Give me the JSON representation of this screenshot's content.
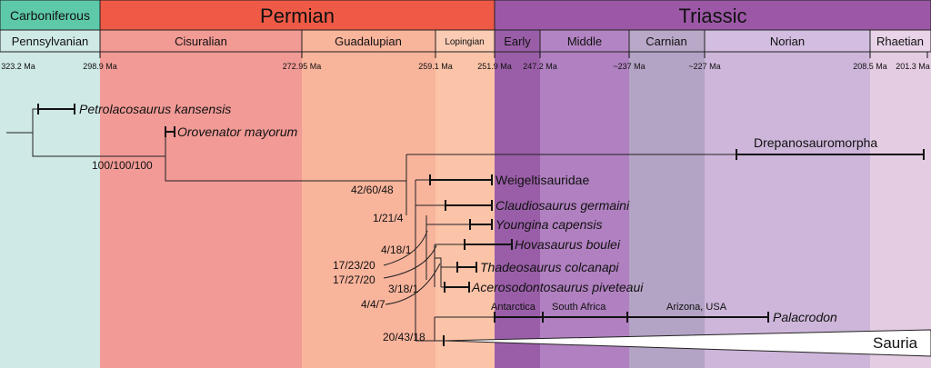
{
  "periods": [
    {
      "key": "carboniferous",
      "label": "Carboniferous",
      "color": "#5ec9a9"
    },
    {
      "key": "permian",
      "label": "Permian",
      "color": "#ef5a46"
    },
    {
      "key": "triassic",
      "label": "Triassic",
      "color": "#9c58a6"
    }
  ],
  "epochs": [
    {
      "key": "pennsylvanian",
      "label": "Pennsylvanian",
      "band": "#cfe9e6",
      "header": "#cfe9e6"
    },
    {
      "key": "cisuralian",
      "label": "Cisuralian",
      "band": "#f19a96",
      "header": "#f29a94"
    },
    {
      "key": "guadalupian",
      "label": "Guadalupian",
      "band": "#f9b49c",
      "header": "#f9b49c"
    },
    {
      "key": "lopingian",
      "label": "Lopingian",
      "band": "#fbc3a8",
      "header": "#fbcbb4"
    },
    {
      "key": "early",
      "label": "Early",
      "band": "#9a5ea8",
      "header": "#9a5ea8"
    },
    {
      "key": "middle",
      "label": "Middle",
      "band": "#b080c0",
      "header": "#b384c3"
    },
    {
      "key": "carnian",
      "label": "Carnian",
      "band": "#b3a3c5",
      "header": "#b9a8c8"
    },
    {
      "key": "norian",
      "label": "Norian",
      "band": "#cdb6da",
      "header": "#d3bde0"
    },
    {
      "key": "rhaetian",
      "label": "Rhaetian",
      "band": "#e4cce2",
      "header": "#e9d3e8"
    }
  ],
  "ages": [
    "323.2 Ma",
    "298.9 Ma",
    "272.95 Ma",
    "259.1 Ma",
    "251.9 Ma",
    "247.2 Ma",
    "~237 Ma",
    "~227 Ma",
    "208.5 Ma",
    "201.3 Ma"
  ],
  "taxa": [
    {
      "key": "petrolacosaurus",
      "label": "Petrolacosaurus kansensis",
      "italic": true
    },
    {
      "key": "orovenator",
      "label": "Orovenator mayorum",
      "italic": true
    },
    {
      "key": "drepanosauromorpha",
      "label": "Drepanosauromorpha",
      "italic": false
    },
    {
      "key": "weigeltisauridae",
      "label": "Weigeltisauridae",
      "italic": false
    },
    {
      "key": "claudiosaurus",
      "label": "Claudiosaurus germaini",
      "italic": true
    },
    {
      "key": "youngina",
      "label": "Youngina capensis",
      "italic": true
    },
    {
      "key": "hovasaurus",
      "label": "Hovasaurus boulei",
      "italic": true
    },
    {
      "key": "thadeosaurus",
      "label": "Thadeosaurus colcanapi",
      "italic": true
    },
    {
      "key": "acerosodontosaurus",
      "label": "Acerosodontosaurus piveteaui",
      "italic": true
    },
    {
      "key": "palacrodon",
      "label": "Palacrodon",
      "italic": true
    },
    {
      "key": "sauria",
      "label": "Sauria",
      "italic": false
    }
  ],
  "support_values": [
    "100/100/100",
    "42/60/48",
    "1/21/4",
    "4/18/1",
    "17/23/20",
    "17/27/20",
    "3/18/1",
    "4/4/7",
    "20/43/18"
  ],
  "localities": [
    "Antarctica",
    "South Africa",
    "Arizona, USA"
  ]
}
